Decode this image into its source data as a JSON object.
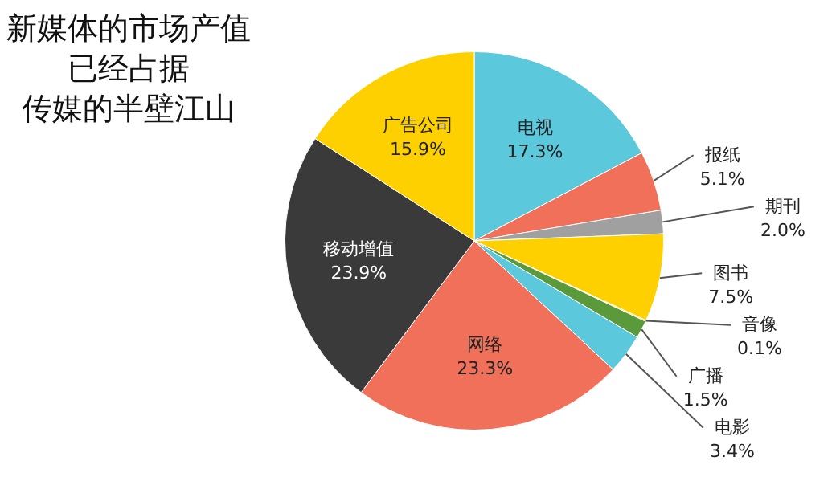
{
  "chart_data": {
    "type": "pie",
    "title": "新媒体的市场产值",
    "subtitle": "已经占据",
    "annotations": [
      "传媒的半壁江山"
    ],
    "categories": [
      "电视",
      "报纸",
      "期刊",
      "图书",
      "音像",
      "广播",
      "电影",
      "网络",
      "移动增值",
      "广告公司"
    ],
    "values": [
      17.3,
      5.1,
      2.0,
      7.5,
      0.1,
      1.5,
      3.4,
      23.3,
      23.9,
      15.9
    ],
    "value_labels": [
      "17.3%",
      "5.1%",
      "2.0%",
      "7.5%",
      "0.1%",
      "1.5%",
      "3.4%",
      "23.3%",
      "23.9%",
      "15.9%"
    ],
    "colors": [
      "#5bc8dc",
      "#f0705a",
      "#a0a0a0",
      "#ffd000",
      "#ffd000",
      "#5a9a3a",
      "#5bc8dc",
      "#f0705a",
      "#3a3a3a",
      "#ffd000"
    ],
    "legend": false
  }
}
